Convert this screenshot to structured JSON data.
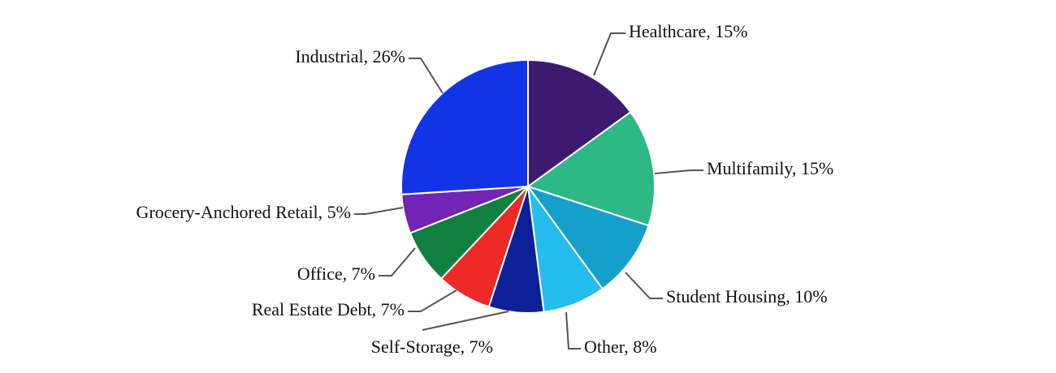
{
  "chart_data": {
    "type": "pie",
    "title": "",
    "start": "top, clockwise",
    "slices": [
      {
        "name": "Healthcare",
        "value": 15,
        "label": "Healthcare, 15%",
        "color": "#3d1a70"
      },
      {
        "name": "Multifamily",
        "value": 15,
        "label": "Multifamily, 15%",
        "color": "#2eb886"
      },
      {
        "name": "Student Housing",
        "value": 10,
        "label": "Student Housing, 10%",
        "color": "#14a0cb"
      },
      {
        "name": "Other",
        "value": 8,
        "label": "Other, 8%",
        "color": "#26bdee"
      },
      {
        "name": "Self-Storage",
        "value": 7,
        "label": "Self-Storage, 7%",
        "color": "#0c2197"
      },
      {
        "name": "Real Estate Debt",
        "value": 7,
        "label": "Real Estate Debt, 7%",
        "color": "#ee2a28"
      },
      {
        "name": "Office",
        "value": 7,
        "label": "Office, 7%",
        "color": "#0f803f"
      },
      {
        "name": "Grocery-Anchored Retail",
        "value": 5,
        "label": "Grocery-Anchored Retail, 5%",
        "color": "#7224b3"
      },
      {
        "name": "Industrial",
        "value": 26,
        "label": "Industrial, 26%",
        "color": "#1333e6"
      }
    ]
  }
}
